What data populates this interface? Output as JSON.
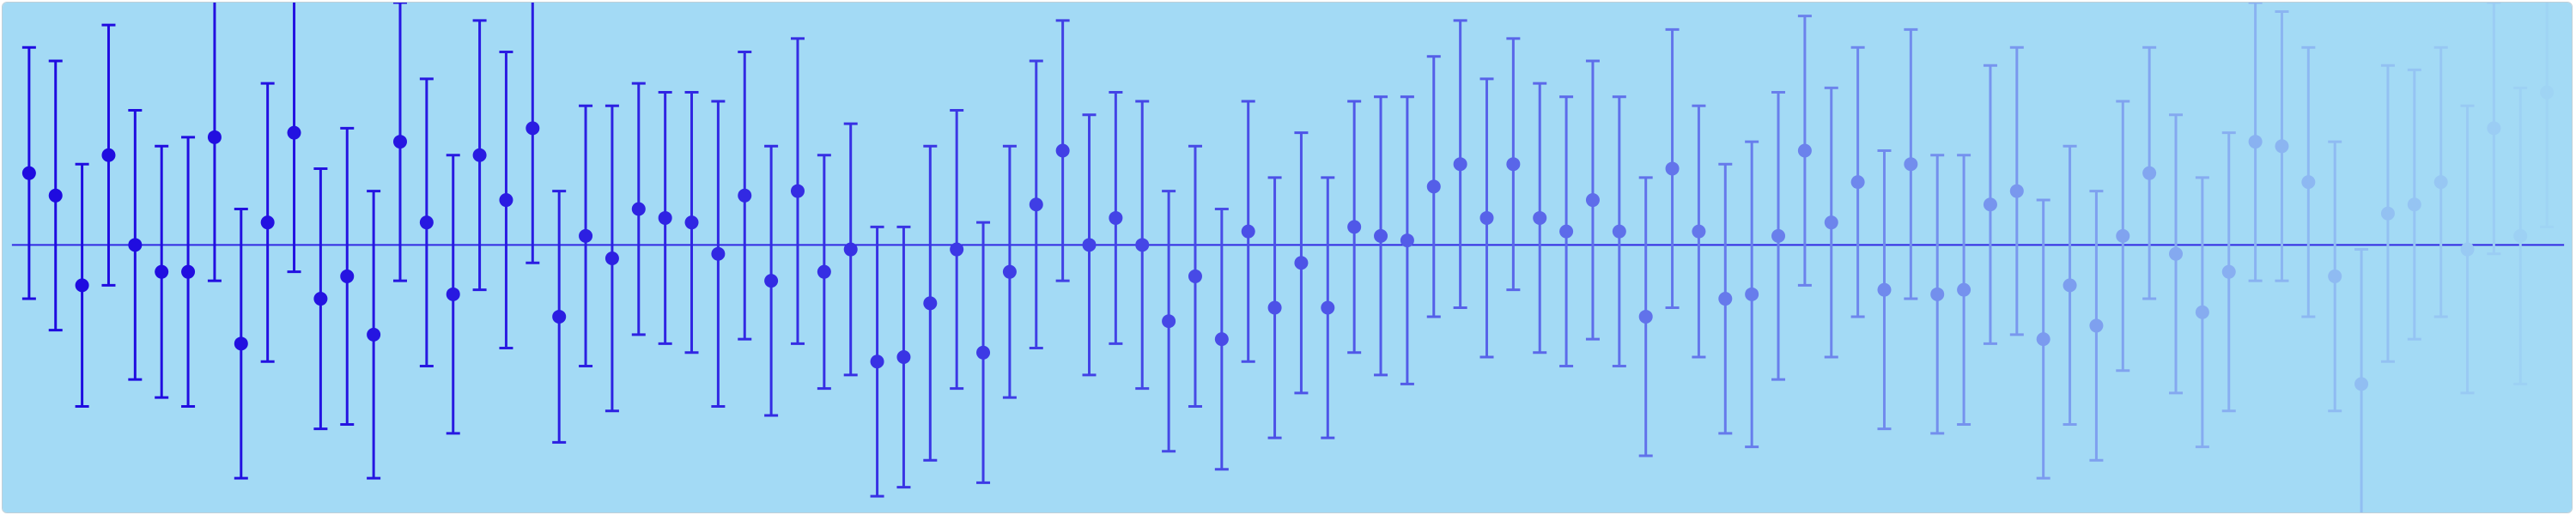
{
  "background_color": "#a3daf5",
  "chart_data": {
    "type": "scatter",
    "subtype": "error-bar",
    "title": "",
    "xlabel": "",
    "ylabel": "",
    "grid": false,
    "legend": "none",
    "baseline": 0,
    "xlim": [
      0,
      97
    ],
    "ylim": [
      -6.0,
      5.4
    ],
    "color_start": "#1f0be0",
    "color_end": "#a3daf5",
    "color_fade_exponent": 1.5,
    "series": [
      {
        "x": [
          1,
          2,
          3,
          4,
          5,
          6,
          7,
          8,
          9,
          10,
          11,
          12,
          13,
          14,
          15,
          16,
          17,
          18,
          19,
          20,
          21,
          22,
          23,
          24,
          25,
          26,
          27,
          28,
          29,
          30,
          31,
          32,
          33,
          34,
          35,
          36,
          37,
          38,
          39,
          40,
          41,
          42,
          43,
          44,
          45,
          46,
          47,
          48,
          49,
          50,
          51,
          52,
          53,
          54,
          55,
          56,
          57,
          58,
          59,
          60,
          61,
          62,
          63,
          64,
          65,
          66,
          67,
          68,
          69,
          70,
          71,
          72,
          73,
          74,
          75,
          76,
          77,
          78,
          79,
          80,
          81,
          82,
          83,
          84,
          85,
          86,
          87,
          88,
          89,
          90,
          91,
          92,
          93,
          94,
          95,
          96
        ],
        "y": [
          1.6,
          1.1,
          -0.9,
          2.0,
          0.0,
          -0.6,
          -0.6,
          2.4,
          -2.2,
          0.5,
          2.5,
          -1.2,
          -0.7,
          -2.0,
          2.3,
          0.5,
          -1.1,
          2.0,
          1.0,
          2.6,
          -1.6,
          0.2,
          -0.3,
          0.8,
          0.6,
          0.5,
          -0.2,
          1.1,
          -0.8,
          1.2,
          -0.6,
          -0.1,
          -2.6,
          -2.5,
          -1.3,
          -0.1,
          -2.4,
          -0.6,
          0.9,
          2.1,
          0.0,
          0.6,
          0.0,
          -1.7,
          -0.7,
          -2.1,
          0.3,
          -1.4,
          -0.4,
          -1.4,
          0.4,
          0.2,
          0.1,
          1.3,
          1.8,
          0.6,
          1.8,
          0.6,
          0.3,
          1.0,
          0.3,
          -1.6,
          1.7,
          0.3,
          -1.2,
          -1.1,
          0.2,
          2.1,
          0.5,
          1.4,
          -1.0,
          1.8,
          -1.1,
          -1.0,
          0.9,
          1.2,
          -2.1,
          -0.9,
          -1.8,
          0.2,
          1.6,
          -0.2,
          -1.5,
          -0.6,
          2.3,
          2.2,
          1.4,
          -0.7,
          -3.1,
          0.7,
          0.9,
          1.4,
          -0.1,
          2.6,
          0.2,
          3.4
        ],
        "error": [
          2.8,
          3.0,
          2.7,
          2.9,
          3.0,
          2.8,
          3.0,
          3.2,
          3.0,
          3.1,
          3.1,
          2.9,
          3.3,
          3.2,
          3.1,
          3.2,
          3.1,
          3.0,
          3.3,
          3.0,
          2.8,
          2.9,
          3.4,
          2.8,
          2.8,
          2.9,
          3.4,
          3.2,
          3.0,
          3.4,
          2.6,
          2.8,
          3.0,
          2.9,
          3.5,
          3.1,
          2.9,
          2.8,
          3.2,
          2.9,
          2.9,
          2.8,
          3.2,
          2.9,
          2.9,
          2.9,
          2.9,
          2.9,
          2.9,
          2.9,
          2.8,
          3.1,
          3.2,
          2.9,
          3.2,
          3.1,
          2.8,
          3.0,
          3.0,
          3.1,
          3.0,
          3.1,
          3.1,
          2.8,
          3.0,
          3.4,
          3.2,
          3.0,
          3.0,
          3.0,
          3.1,
          3.0,
          3.1,
          3.0,
          3.1,
          3.2,
          3.1,
          3.1,
          3.0,
          3.0,
          2.8,
          3.1,
          3.0,
          3.1,
          3.1,
          3.0,
          3.0,
          3.0,
          3.0,
          3.3,
          3.0,
          3.0,
          3.2,
          2.8,
          3.3,
          3.0
        ]
      }
    ]
  }
}
